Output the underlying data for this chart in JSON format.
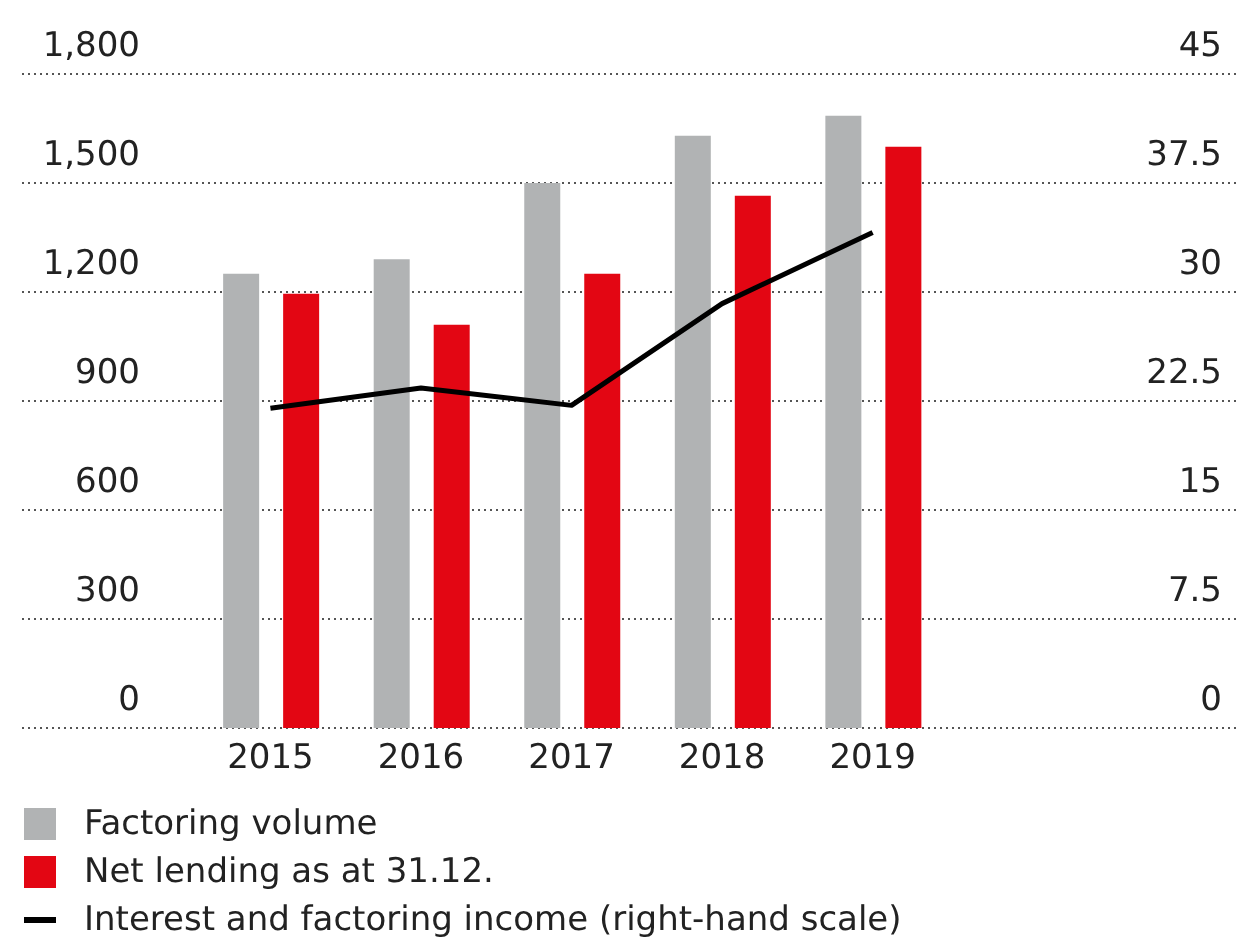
{
  "chart_data": {
    "type": "bar",
    "categories": [
      "2015",
      "2016",
      "2017",
      "2018",
      "2019"
    ],
    "series": [
      {
        "name": "Factoring volume",
        "color": "#b1b3b4",
        "values": [
          1250,
          1290,
          1500,
          1630,
          1685
        ]
      },
      {
        "name": "Net lending as at 31.12.",
        "color": "#e30613",
        "values": [
          1195,
          1110,
          1250,
          1465,
          1600
        ]
      },
      {
        "name": "Interest and factoring income (right-hand scale)",
        "type": "line",
        "axis": "y2",
        "color": "#000000",
        "values": [
          22.0,
          23.4,
          22.2,
          29.2,
          34.1
        ]
      }
    ],
    "ylim": [
      0,
      1800
    ],
    "yticks": [
      0,
      300,
      600,
      900,
      {
        "value": 1200,
        "label": "1,200"
      },
      {
        "value": 1500,
        "label": "1,500"
      },
      {
        "value": 1800,
        "label": "1,800"
      }
    ],
    "y2lim": [
      0,
      45
    ],
    "y2ticks": [
      0,
      7.5,
      15,
      22.5,
      30,
      37.5,
      45
    ],
    "grid": "y",
    "legend": "bottom left",
    "marker": "none",
    "line_style": "solid"
  }
}
